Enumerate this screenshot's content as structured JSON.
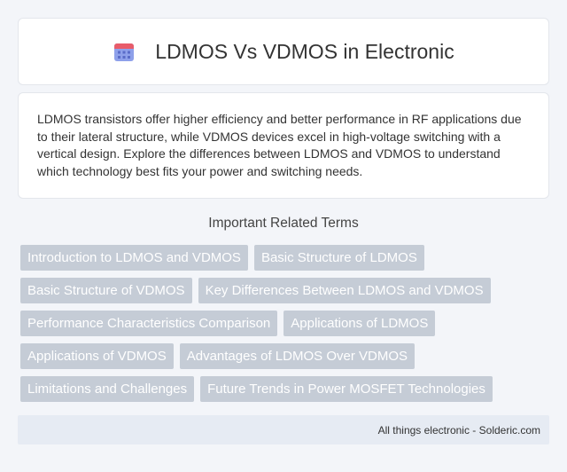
{
  "header": {
    "title": "LDMOS Vs VDMOS in Electronic",
    "icon": "calendar-icon",
    "icon_colors": {
      "top": "#e85c6a",
      "body": "#7b8fe0",
      "dots": "#5a6cc8"
    }
  },
  "intro": {
    "text": "LDMOS transistors offer higher efficiency and better performance in RF applications due to their lateral structure, while VDMOS devices excel in high-voltage switching with a vertical design. Explore the differences between LDMOS and VDMOS to understand which technology best fits your power and switching needs."
  },
  "related": {
    "heading": "Important Related Terms",
    "tags": [
      "Introduction to LDMOS and VDMOS",
      "Basic Structure of LDMOS",
      "Basic Structure of VDMOS",
      "Key Differences Between LDMOS and VDMOS",
      "Performance Characteristics Comparison",
      "Applications of LDMOS",
      "Applications of VDMOS",
      "Advantages of LDMOS Over VDMOS",
      "Limitations and Challenges",
      "Future Trends in Power MOSFET Technologies"
    ]
  },
  "footer": {
    "text": "All things electronic - Solderic.com"
  },
  "colors": {
    "background": "#f3f5f9",
    "tag_bg": "#c5ccd6",
    "footer_bg": "#e6ebf3"
  }
}
